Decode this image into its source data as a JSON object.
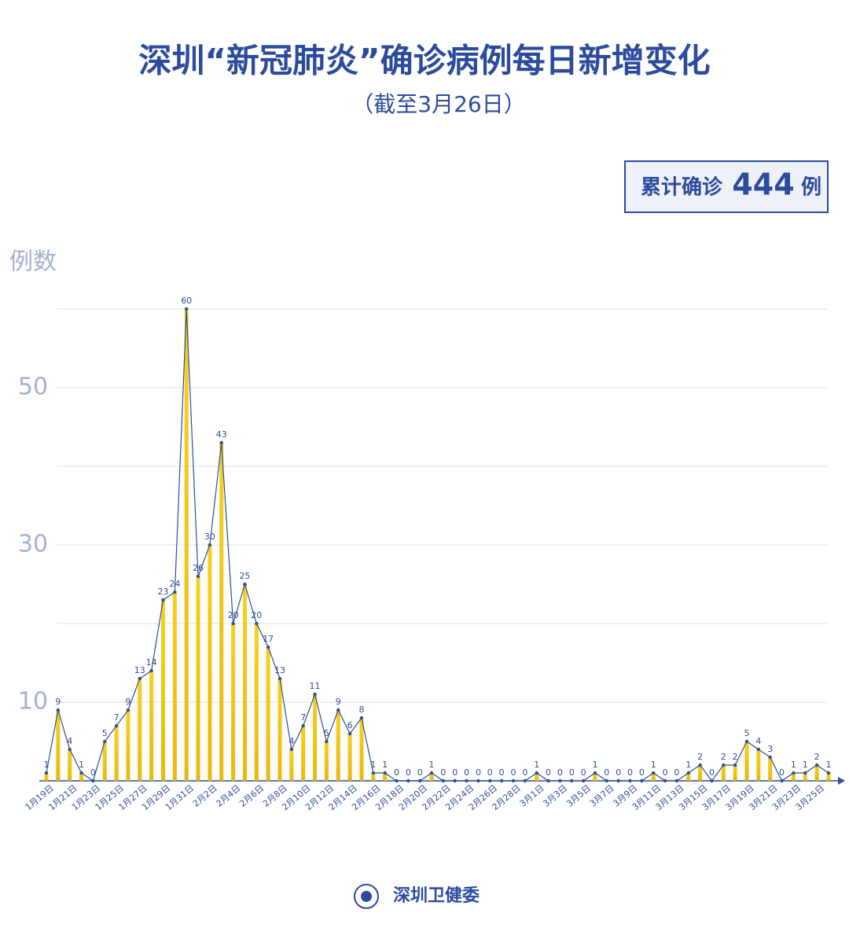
{
  "chart_data": {
    "type": "bar-line",
    "title": "深圳“新冠肺炎”确诊病例每日新增变化",
    "subtitle": "（截至3月26日）",
    "total_prefix": "累计确诊",
    "total": 444,
    "total_unit": "例",
    "y_axis_label": "例数",
    "source": "深圳卫健委",
    "categories": [
      "1月19日",
      null,
      "1月21日",
      null,
      "1月23日",
      null,
      "1月25日",
      null,
      "1月27日",
      null,
      "1月29日",
      null,
      "1月31日",
      null,
      "2月2日",
      null,
      "2月4日",
      null,
      "2月6日",
      null,
      "2月8日",
      null,
      "2月10日",
      null,
      "2月12日",
      null,
      "2月14日",
      null,
      "2月16日",
      null,
      "2月18日",
      null,
      "2月20日",
      null,
      "2月22日",
      null,
      "2月24日",
      null,
      "2月26日",
      null,
      "2月28日",
      null,
      "3月1日",
      null,
      "3月3日",
      null,
      "3月5日",
      null,
      "3月7日",
      null,
      "3月9日",
      null,
      "3月11日",
      null,
      "3月13日",
      null,
      "3月15日",
      null,
      "3月17日",
      null,
      "3月19日",
      null,
      "3月21日",
      null,
      "3月23日",
      null,
      "3月25日",
      null
    ],
    "values": [
      1,
      9,
      4,
      1,
      0,
      5,
      7,
      9,
      13,
      14,
      23,
      24,
      60,
      26,
      30,
      43,
      20,
      25,
      20,
      17,
      13,
      4,
      7,
      11,
      5,
      9,
      6,
      8,
      1,
      1,
      0,
      0,
      0,
      1,
      0,
      0,
      0,
      0,
      0,
      0,
      0,
      0,
      1,
      0,
      0,
      0,
      0,
      1,
      0,
      0,
      0,
      0,
      1,
      0,
      0,
      1,
      2,
      0,
      2,
      2,
      5,
      4,
      3,
      0,
      1,
      1,
      2,
      1
    ],
    "color": "#f2c418",
    "line_color": "#2f4f96",
    "ylim": [
      0,
      60
    ],
    "yticks": [
      10,
      30,
      50
    ],
    "grid_lines": [
      10,
      20,
      30,
      40,
      50,
      60
    ],
    "grid": true
  }
}
